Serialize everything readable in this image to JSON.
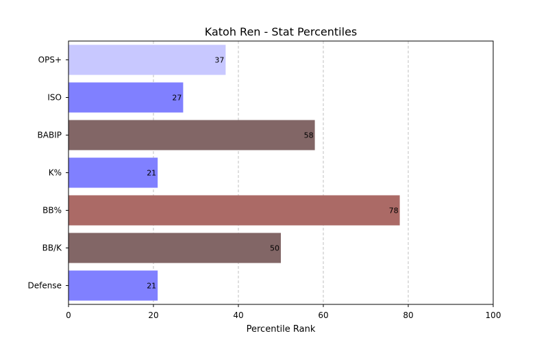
{
  "chart_data": {
    "type": "bar",
    "orientation": "horizontal",
    "title": "Katoh Ren - Stat Percentiles",
    "xlabel": "Percentile Rank",
    "ylabel": "",
    "xlim": [
      0,
      100
    ],
    "xticks": [
      0,
      20,
      40,
      60,
      80,
      100
    ],
    "grid": "x-dashed",
    "categories": [
      "OPS+",
      "ISO",
      "BABIP",
      "K%",
      "BB%",
      "BB/K",
      "Defense"
    ],
    "values": [
      37,
      27,
      58,
      21,
      78,
      50,
      21
    ],
    "colors": [
      "#c8c8ff",
      "#8080ff",
      "#826666",
      "#8080ff",
      "#ab6a66",
      "#826666",
      "#8080ff"
    ]
  }
}
